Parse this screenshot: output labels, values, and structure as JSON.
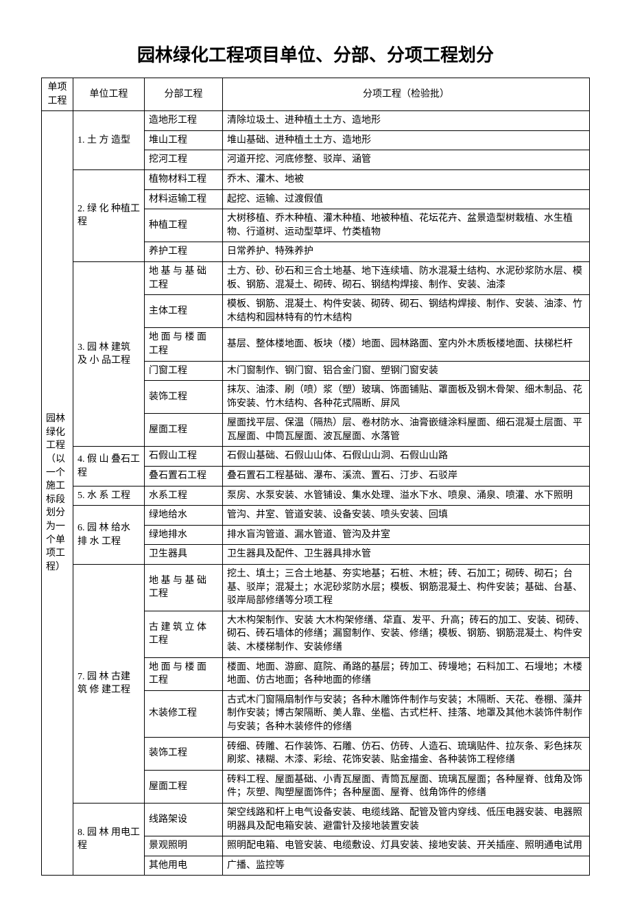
{
  "title": "园林绿化工程项目单位、分部、分项工程划分",
  "headers": {
    "col1": "单项工程",
    "col2": "单位工程",
    "col3": "分部工程",
    "col4": "分项工程（检验批）"
  },
  "col1_label": "园林绿化工程（以一个施工标段划分为一个单项工程）",
  "units": [
    {
      "label": "1. 土 方 造型",
      "subs": [
        {
          "name": "造地形工程",
          "detail": "清除垃圾土、进种植土土方、造地形"
        },
        {
          "name": "堆山工程",
          "detail": "堆山基础、进种植土土方、造地形"
        },
        {
          "name": "挖河工程",
          "detail": "河道开挖、河底修整、驳岸、涵管"
        }
      ]
    },
    {
      "label": "2. 绿 化 种植工程",
      "subs": [
        {
          "name": "植物材料工程",
          "detail": "乔木、灌木、地被"
        },
        {
          "name": "材料运输工程",
          "detail": "起挖、运输、过渡假值"
        },
        {
          "name": "种植工程",
          "detail": "大树移植、乔木种植、灌木种植、地被种植、花坛花卉、盆景造型树栽植、水生植物、行道树、运动型草坪、竹类植物"
        },
        {
          "name": "养护工程",
          "detail": "日常养护、特殊养护"
        }
      ]
    },
    {
      "label": "3. 园 林 建筑 及 小 品工程",
      "subs": [
        {
          "name": "地 基 与 基 础 工程",
          "detail": "土方、砂、砂石和三合土地基、地下连续墙、防水混凝土结构、水泥砂浆防水层、模板、钢筋、混凝土、砌砖、砌石、钢结构焊接、制作、安装、油漆"
        },
        {
          "name": "主体工程",
          "detail": "模板、钢筋、混凝土、构件安装、砌砖、砌石、钢结构焊接、制作、安装、油漆、竹木结构和园林特有的竹木结构"
        },
        {
          "name": "地 面 与 楼 面 工程",
          "detail": "基层、整体楼地面、板块（楼）地面、园林路面、室内外木质板楼地面、扶梯栏杆"
        },
        {
          "name": "门窗工程",
          "detail": "木门窗制作、钢门窗、铝合金门窗、塑钢门窗安装"
        },
        {
          "name": "装饰工程",
          "detail": "抹灰、油漆、刷（喷）浆（塑）玻璃、饰面铺贴、罩面板及钢木骨架、细木制品、花饰安装、竹木结构、各种花式隔断、屏风"
        },
        {
          "name": "屋面工程",
          "detail": "屋面找平层、保温（隔热）层、卷材防水、油膏嵌缝涂料屋面、细石混凝土层面、平瓦屋面、中筒瓦屋面、波瓦屋面、水落管"
        }
      ]
    },
    {
      "label": "4. 假 山 叠石工程",
      "subs": [
        {
          "name": "石假山工程",
          "detail": "石假山基础、石假山山体、石假山山洞、石假山山路"
        },
        {
          "name": "叠石置石工程",
          "detail": "叠石置石工程基础、瀑布、溪流、置石、汀步、石驳岸"
        }
      ]
    },
    {
      "label": "5. 水 系 工程",
      "subs": [
        {
          "name": "水系工程",
          "detail": "泵房、水泵安装、水管铺设、集水处理、溢水下水、喷泉、涌泉、喷灌、水下照明"
        }
      ]
    },
    {
      "label": "6. 园 林 给水 排 水 工程",
      "subs": [
        {
          "name": "绿地给水",
          "detail": "管沟、井室、管道安装、设备安装、喷头安装、回填"
        },
        {
          "name": "绿地排水",
          "detail": "排水盲沟管道、漏水管道、管沟及井室"
        },
        {
          "name": "卫生器具",
          "detail": "卫生器具及配件、卫生器具排水管"
        }
      ]
    },
    {
      "label": "7. 园 林 古建 筑 修 建工程",
      "subs": [
        {
          "name": "地 基 与 基 础 工程",
          "detail": "挖土、填土；三合土地基、夯实地基；石桩、木桩；砖、石加工；砌砖、砌石；台基、驳岸；混凝土；水泥砂浆防水层；模板、钢筋混凝土、构件安装；基础、台基、驳岸局部修缮等分项工程"
        },
        {
          "name": "古 建 筑 立 体 工程",
          "detail": "大木构架制作、安装 大木构架修缮、牮直、发平、升高；砖石的加工、安装、砌砖、砌石、砖石墙体的修缮；漏窗制作、安装、修缮；模板、钢筋、钢筋混凝土、构件安装、木楼梯制作、安装修缮"
        },
        {
          "name": "地 面 与 楼 面 工程",
          "detail": "楼面、地面、游廊、庭院、甬路的基层；砖加工、砖墁地；石料加工、石墁地；木楼地面、仿古地面；各种地面的修缮"
        },
        {
          "name": "木装修工程",
          "detail": "古式木门窗隔扇制作与安装；各种木雕饰件制作与安装；木隔断、天花、卷棚、藻井制作安装；博古架隔断、美人靠、坐槛、古式栏杆、挂落、地罩及其他木装饰件制作与安装；各种木装修件的修缮"
        },
        {
          "name": "装饰工程",
          "detail": "砖细、砖雕、石作装饰、石雕、仿石、仿砖、人造石、琉璃贴件、拉灰条、彩色抹灰刷浆、裱糊、木漆、彩绘、花饰安装、贴金描金、各种装饰工程修缮"
        },
        {
          "name": "屋面工程",
          "detail": "砖料工程、屋面基础、小青瓦屋面、青筒瓦屋面、琉璃瓦屋面；各种屋脊、戗角及饰件；灰塑、陶塑屋面饰件；各种屋面、屋脊、戗角饰件的修缮"
        }
      ]
    },
    {
      "label": "8. 园 林 用电工程",
      "subs": [
        {
          "name": "线路架设",
          "detail": "架空线路和杆上电气设备安装、电缆线路、配管及管内穿线、低压电器安装、电器照明器具及配电箱安装、避雷针及接地装置安装"
        },
        {
          "name": "景观照明",
          "detail": "照明配电箱、电管安装、电缆敷设、灯具安装、接地安装、开关插座、照明通电试用"
        },
        {
          "name": "其他用电",
          "detail": "广播、监控等"
        }
      ]
    }
  ]
}
